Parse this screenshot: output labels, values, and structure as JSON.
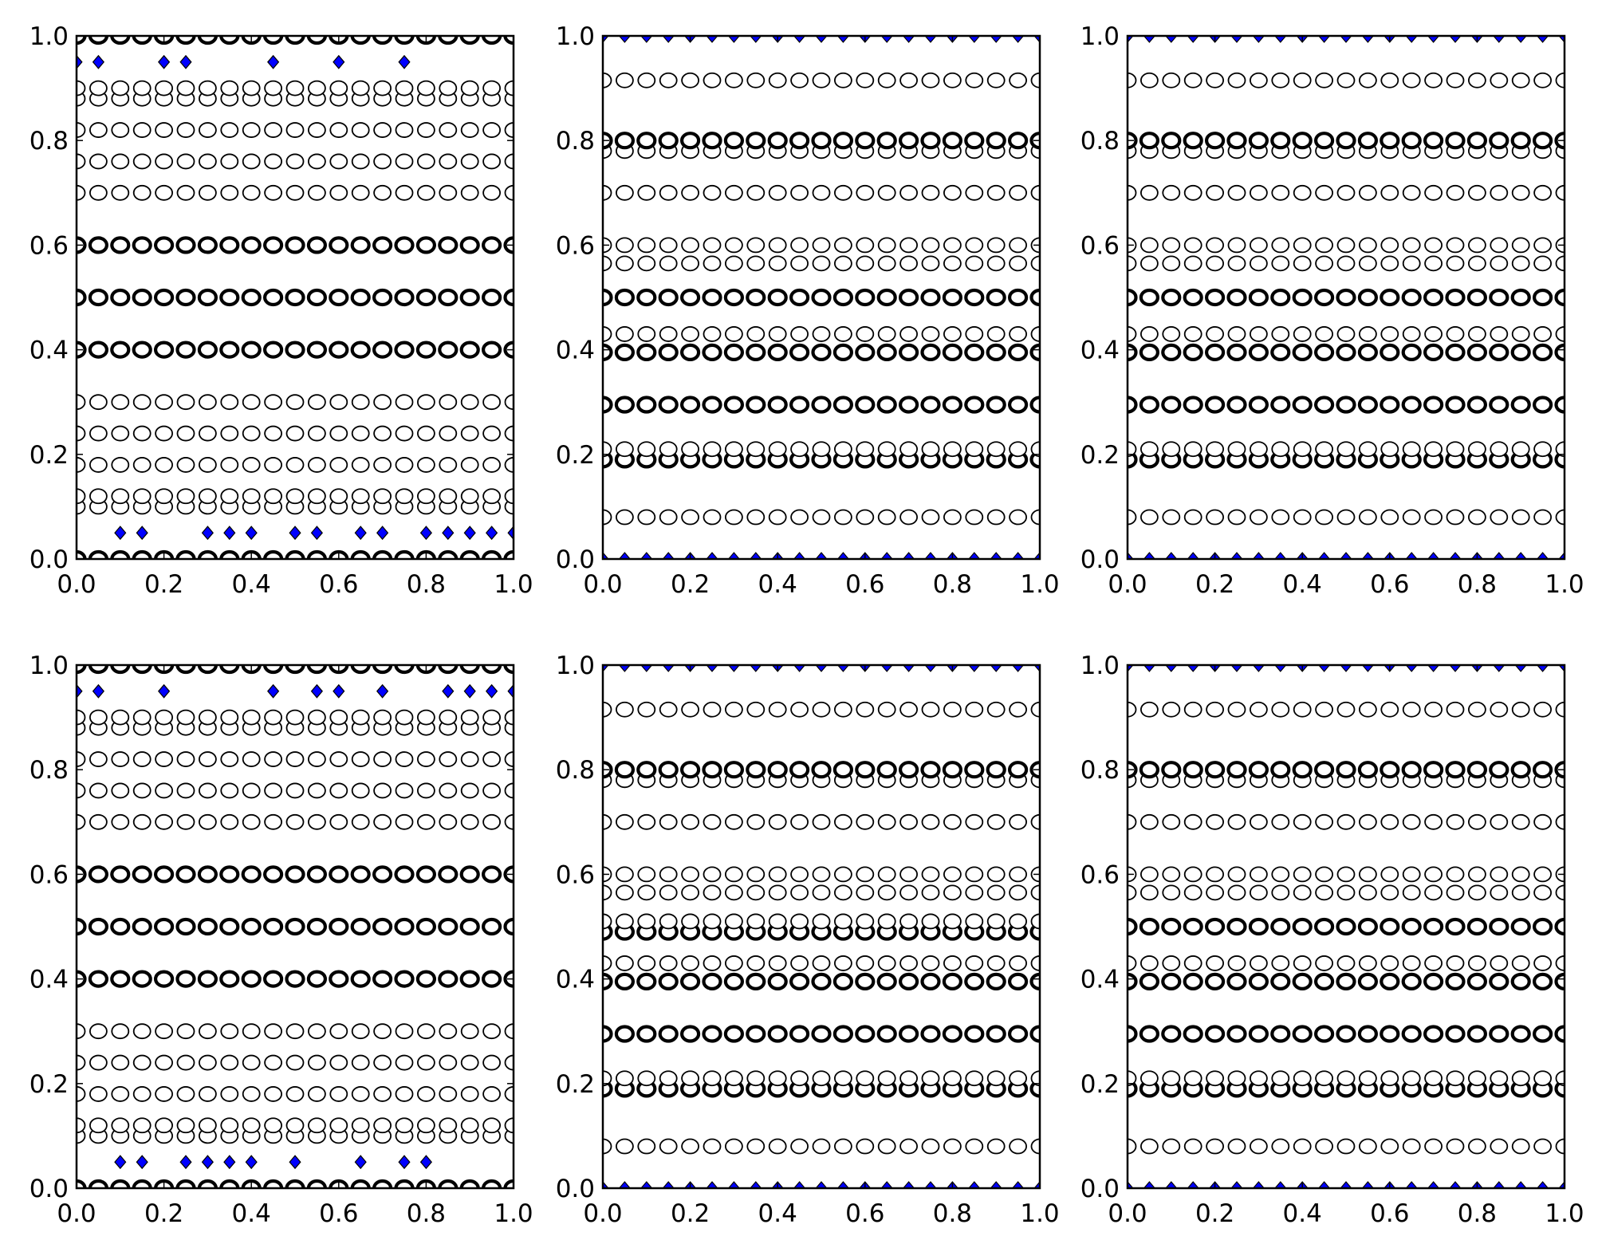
{
  "figure": {
    "background": "#ffffff",
    "marker_colors": {
      "circle_edge": "#000000",
      "circle_face": "#ffffff",
      "diamond_face": "#0000ff",
      "diamond_edge": "#000000"
    }
  },
  "chart_data": [
    {
      "type": "scatter",
      "panel": "row1-col1",
      "xlim": [
        0,
        1
      ],
      "ylim": [
        0,
        1
      ],
      "xticks": [
        "0.0",
        "0.2",
        "0.4",
        "0.6",
        "0.8",
        "1.0"
      ],
      "yticks": [
        "0.0",
        "0.2",
        "0.4",
        "0.6",
        "0.8",
        "1.0"
      ],
      "x": [
        0,
        0.05,
        0.1,
        0.15,
        0.2,
        0.25,
        0.3,
        0.35,
        0.4,
        0.45,
        0.5,
        0.55,
        0.6,
        0.65,
        0.7,
        0.75,
        0.8,
        0.85,
        0.9,
        0.95,
        1
      ],
      "circle_rows": [
        {
          "y": 0.0,
          "bold": true
        },
        {
          "y": 0.1
        },
        {
          "y": 0.12
        },
        {
          "y": 0.18
        },
        {
          "y": 0.24
        },
        {
          "y": 0.3
        },
        {
          "y": 0.4,
          "bold": true
        },
        {
          "y": 0.5,
          "bold": true
        },
        {
          "y": 0.6,
          "bold": true
        },
        {
          "y": 0.7
        },
        {
          "y": 0.76
        },
        {
          "y": 0.82
        },
        {
          "y": 0.88
        },
        {
          "y": 0.9
        },
        {
          "y": 1.0,
          "bold": true
        }
      ],
      "diamonds": [
        {
          "y": 0.95,
          "x": [
            0,
            0.05,
            0.2,
            0.25,
            0.45,
            0.6,
            0.75
          ]
        },
        {
          "y": 0.05,
          "x": [
            0.1,
            0.15,
            0.3,
            0.35,
            0.4,
            0.5,
            0.55,
            0.65,
            0.7,
            0.8,
            0.85,
            0.9,
            0.95,
            1
          ]
        }
      ]
    },
    {
      "type": "scatter",
      "panel": "row1-col2",
      "xlim": [
        0,
        1
      ],
      "ylim": [
        0,
        1
      ],
      "xticks": [
        "0.0",
        "0.2",
        "0.4",
        "0.6",
        "0.8",
        "1.0"
      ],
      "yticks": [
        "0.0",
        "0.2",
        "0.4",
        "0.6",
        "0.8",
        "1.0"
      ],
      "x": [
        0,
        0.05,
        0.1,
        0.15,
        0.2,
        0.25,
        0.3,
        0.35,
        0.4,
        0.45,
        0.5,
        0.55,
        0.6,
        0.65,
        0.7,
        0.75,
        0.8,
        0.85,
        0.9,
        0.95,
        1
      ],
      "circle_rows": [
        {
          "y": 0.08
        },
        {
          "y": 0.19,
          "bold": true
        },
        {
          "y": 0.21
        },
        {
          "y": 0.295,
          "bold": true
        },
        {
          "y": 0.395,
          "bold": true
        },
        {
          "y": 0.43
        },
        {
          "y": 0.5,
          "bold": true
        },
        {
          "y": 0.565
        },
        {
          "y": 0.6
        },
        {
          "y": 0.7
        },
        {
          "y": 0.78
        },
        {
          "y": 0.8,
          "bold": true
        },
        {
          "y": 0.915
        }
      ],
      "diamonds": [
        {
          "y": 1.0,
          "x": [
            0,
            0.05,
            0.1,
            0.15,
            0.2,
            0.25,
            0.3,
            0.35,
            0.4,
            0.45,
            0.5,
            0.55,
            0.6,
            0.65,
            0.7,
            0.75,
            0.8,
            0.85,
            0.9,
            0.95,
            1
          ]
        },
        {
          "y": 0.0,
          "x": [
            0,
            0.05,
            0.1,
            0.15,
            0.2,
            0.25,
            0.3,
            0.35,
            0.4,
            0.45,
            0.5,
            0.55,
            0.6,
            0.65,
            0.7,
            0.75,
            0.8,
            0.85,
            0.9,
            0.95,
            1
          ]
        }
      ]
    },
    {
      "type": "scatter",
      "panel": "row1-col3",
      "xlim": [
        0,
        1
      ],
      "ylim": [
        0,
        1
      ],
      "xticks": [
        "0.0",
        "0.2",
        "0.4",
        "0.6",
        "0.8",
        "1.0"
      ],
      "yticks": [
        "0.0",
        "0.2",
        "0.4",
        "0.6",
        "0.8",
        "1.0"
      ],
      "x": [
        0,
        0.05,
        0.1,
        0.15,
        0.2,
        0.25,
        0.3,
        0.35,
        0.4,
        0.45,
        0.5,
        0.55,
        0.6,
        0.65,
        0.7,
        0.75,
        0.8,
        0.85,
        0.9,
        0.95,
        1
      ],
      "circle_rows": [
        {
          "y": 0.08
        },
        {
          "y": 0.19,
          "bold": true
        },
        {
          "y": 0.21
        },
        {
          "y": 0.295,
          "bold": true
        },
        {
          "y": 0.395,
          "bold": true
        },
        {
          "y": 0.43
        },
        {
          "y": 0.5,
          "bold": true
        },
        {
          "y": 0.565
        },
        {
          "y": 0.6
        },
        {
          "y": 0.7
        },
        {
          "y": 0.78
        },
        {
          "y": 0.8,
          "bold": true
        },
        {
          "y": 0.915
        }
      ],
      "diamonds": [
        {
          "y": 1.0,
          "x": [
            0,
            0.05,
            0.1,
            0.15,
            0.2,
            0.25,
            0.3,
            0.35,
            0.4,
            0.45,
            0.5,
            0.55,
            0.6,
            0.65,
            0.7,
            0.75,
            0.8,
            0.85,
            0.9,
            0.95,
            1
          ]
        },
        {
          "y": 0.0,
          "x": [
            0,
            0.05,
            0.1,
            0.15,
            0.2,
            0.25,
            0.3,
            0.35,
            0.4,
            0.45,
            0.5,
            0.55,
            0.6,
            0.65,
            0.7,
            0.75,
            0.8,
            0.85,
            0.9,
            0.95,
            1
          ]
        }
      ]
    },
    {
      "type": "scatter",
      "panel": "row2-col1",
      "xlim": [
        0,
        1
      ],
      "ylim": [
        0,
        1
      ],
      "xticks": [
        "0.0",
        "0.2",
        "0.4",
        "0.6",
        "0.8",
        "1.0"
      ],
      "yticks": [
        "0.0",
        "0.2",
        "0.4",
        "0.6",
        "0.8",
        "1.0"
      ],
      "x": [
        0,
        0.05,
        0.1,
        0.15,
        0.2,
        0.25,
        0.3,
        0.35,
        0.4,
        0.45,
        0.5,
        0.55,
        0.6,
        0.65,
        0.7,
        0.75,
        0.8,
        0.85,
        0.9,
        0.95,
        1
      ],
      "circle_rows": [
        {
          "y": 0.0,
          "bold": true
        },
        {
          "y": 0.1
        },
        {
          "y": 0.12
        },
        {
          "y": 0.18
        },
        {
          "y": 0.24
        },
        {
          "y": 0.3
        },
        {
          "y": 0.4,
          "bold": true
        },
        {
          "y": 0.5,
          "bold": true
        },
        {
          "y": 0.6,
          "bold": true
        },
        {
          "y": 0.7
        },
        {
          "y": 0.76
        },
        {
          "y": 0.82
        },
        {
          "y": 0.88
        },
        {
          "y": 0.9
        },
        {
          "y": 1.0,
          "bold": true
        }
      ],
      "diamonds": [
        {
          "y": 0.95,
          "x": [
            0,
            0.05,
            0.2,
            0.45,
            0.55,
            0.6,
            0.7,
            0.85,
            0.9,
            0.95,
            1
          ]
        },
        {
          "y": 0.05,
          "x": [
            0.1,
            0.15,
            0.25,
            0.3,
            0.35,
            0.4,
            0.5,
            0.65,
            0.75,
            0.8
          ]
        }
      ]
    },
    {
      "type": "scatter",
      "panel": "row2-col2",
      "xlim": [
        0,
        1
      ],
      "ylim": [
        0,
        1
      ],
      "xticks": [
        "0.0",
        "0.2",
        "0.4",
        "0.6",
        "0.8",
        "1.0"
      ],
      "yticks": [
        "0.0",
        "0.2",
        "0.4",
        "0.6",
        "0.8",
        "1.0"
      ],
      "x": [
        0,
        0.05,
        0.1,
        0.15,
        0.2,
        0.25,
        0.3,
        0.35,
        0.4,
        0.45,
        0.5,
        0.55,
        0.6,
        0.65,
        0.7,
        0.75,
        0.8,
        0.85,
        0.9,
        0.95,
        1
      ],
      "circle_rows": [
        {
          "y": 0.08
        },
        {
          "y": 0.19,
          "bold": true
        },
        {
          "y": 0.21
        },
        {
          "y": 0.295,
          "bold": true
        },
        {
          "y": 0.395,
          "bold": true
        },
        {
          "y": 0.43
        },
        {
          "y": 0.49,
          "bold": true
        },
        {
          "y": 0.51
        },
        {
          "y": 0.565
        },
        {
          "y": 0.6
        },
        {
          "y": 0.7
        },
        {
          "y": 0.78
        },
        {
          "y": 0.8,
          "bold": true
        },
        {
          "y": 0.915
        }
      ],
      "diamonds": [
        {
          "y": 1.0,
          "x": [
            0,
            0.05,
            0.1,
            0.15,
            0.2,
            0.25,
            0.3,
            0.35,
            0.4,
            0.45,
            0.5,
            0.55,
            0.6,
            0.65,
            0.7,
            0.75,
            0.8,
            0.85,
            0.9,
            0.95,
            1
          ]
        },
        {
          "y": 0.0,
          "x": [
            0,
            0.05,
            0.1,
            0.15,
            0.2,
            0.25,
            0.3,
            0.35,
            0.4,
            0.45,
            0.5,
            0.55,
            0.6,
            0.65,
            0.7,
            0.75,
            0.8,
            0.85,
            0.9,
            0.95,
            1
          ]
        }
      ]
    },
    {
      "type": "scatter",
      "panel": "row2-col3",
      "xlim": [
        0,
        1
      ],
      "ylim": [
        0,
        1
      ],
      "xticks": [
        "0.0",
        "0.2",
        "0.4",
        "0.6",
        "0.8",
        "1.0"
      ],
      "yticks": [
        "0.0",
        "0.2",
        "0.4",
        "0.6",
        "0.8",
        "1.0"
      ],
      "x": [
        0,
        0.05,
        0.1,
        0.15,
        0.2,
        0.25,
        0.3,
        0.35,
        0.4,
        0.45,
        0.5,
        0.55,
        0.6,
        0.65,
        0.7,
        0.75,
        0.8,
        0.85,
        0.9,
        0.95,
        1
      ],
      "circle_rows": [
        {
          "y": 0.08
        },
        {
          "y": 0.19,
          "bold": true
        },
        {
          "y": 0.21
        },
        {
          "y": 0.295,
          "bold": true
        },
        {
          "y": 0.395,
          "bold": true
        },
        {
          "y": 0.43
        },
        {
          "y": 0.5,
          "bold": true
        },
        {
          "y": 0.565
        },
        {
          "y": 0.6
        },
        {
          "y": 0.7
        },
        {
          "y": 0.78
        },
        {
          "y": 0.8,
          "bold": true
        },
        {
          "y": 0.915
        }
      ],
      "diamonds": [
        {
          "y": 1.0,
          "x": [
            0,
            0.05,
            0.1,
            0.15,
            0.2,
            0.25,
            0.3,
            0.35,
            0.4,
            0.45,
            0.5,
            0.55,
            0.6,
            0.65,
            0.7,
            0.75,
            0.8,
            0.85,
            0.9,
            0.95,
            1
          ]
        },
        {
          "y": 0.0,
          "x": [
            0,
            0.05,
            0.1,
            0.15,
            0.2,
            0.25,
            0.3,
            0.35,
            0.4,
            0.45,
            0.5,
            0.55,
            0.6,
            0.65,
            0.7,
            0.75,
            0.8,
            0.85,
            0.9,
            0.95,
            1
          ]
        }
      ]
    }
  ]
}
